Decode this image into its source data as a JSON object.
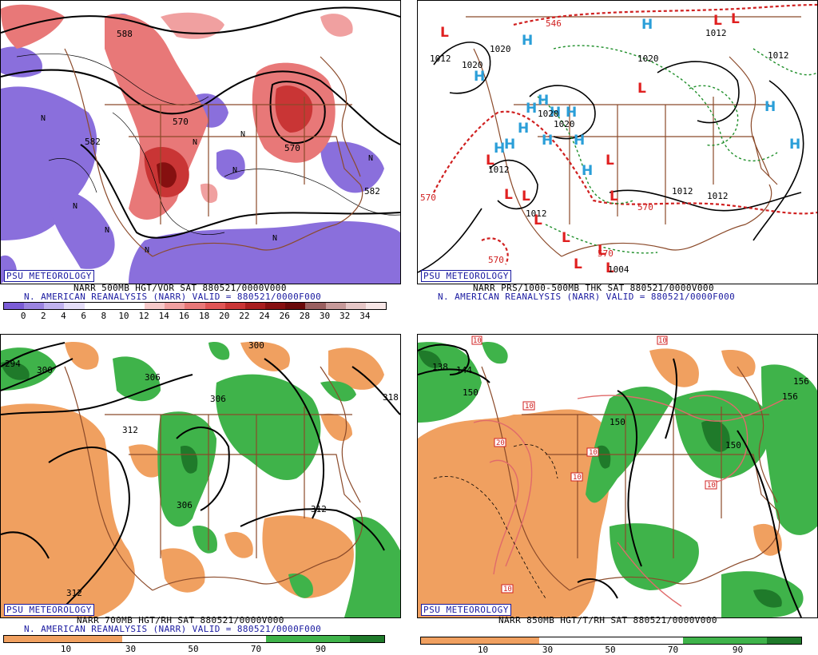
{
  "panels": {
    "tl": {
      "badge": "PSU METEOROLOGY",
      "caption1": "NARR 500MB HGT/VOR SAT 880521/0000V000",
      "caption2": "N. AMERICAN REANALYSIS (NARR) VALID = 880521/0000F000",
      "contour_labels": [
        "588",
        "570",
        "582",
        "570",
        "582"
      ],
      "colorbar_colors": [
        "#7b5cd6",
        "#9b84e0",
        "#c0b2ee",
        "#e4ddf7",
        "#ffffff",
        "#ffffff",
        "#ffffff",
        "#f6c9c9",
        "#f0a0a0",
        "#e87878",
        "#df5555",
        "#c93535",
        "#a81e1e",
        "#861010",
        "#6a0a0a",
        "#9a6060",
        "#c79a9a",
        "#e6c7c7",
        "#f7e6e6"
      ],
      "colorbar_ticks": [
        "0",
        "2",
        "4",
        "6",
        "8",
        "10",
        "12",
        "14",
        "16",
        "18",
        "20",
        "22",
        "24",
        "26",
        "28",
        "30",
        "32",
        "34"
      ]
    },
    "tr": {
      "badge": "PSU METEOROLOGY",
      "caption1": "NARR PRS/1000-500MB THK SAT 880521/0000V000",
      "caption2": "N. AMERICAN REANALYSIS (NARR) VALID = 880521/0000F000",
      "pressure_labels": [
        "1012",
        "1020",
        "1020",
        "1020",
        "1020",
        "1020",
        "1012",
        "1012",
        "1012",
        "1012",
        "1012",
        "1012",
        "1004"
      ],
      "thickness_labels": [
        "546",
        "570",
        "570",
        "570",
        "570"
      ],
      "high_symbol": "H",
      "low_symbol": "L"
    },
    "bl": {
      "badge": "PSU METEOROLOGY",
      "caption1": "NARR 700MB HGT/RH SAT 880521/0000V000",
      "caption2": "N. AMERICAN REANALYSIS (NARR) VALID = 880521/0000F000",
      "contour_labels": [
        "294",
        "300",
        "306",
        "300",
        "306",
        "312",
        "318",
        "306",
        "312",
        "312"
      ],
      "colorbar_ticks": [
        "10",
        "30",
        "50",
        "70",
        "90"
      ]
    },
    "br": {
      "badge": "PSU METEOROLOGY",
      "caption1": "NARR 850MB HGT/T/RH SAT 880521/0000V000",
      "contour_labels": [
        "138",
        "144",
        "150",
        "150",
        "156",
        "150",
        "156"
      ],
      "temp_labels": [
        "10",
        "10",
        "20",
        "10",
        "10",
        "10",
        "10",
        "10"
      ],
      "colorbar_ticks": [
        "10",
        "30",
        "50",
        "70",
        "90"
      ]
    }
  },
  "colors": {
    "vort_pos": "#e87878",
    "vort_neg": "#8a6fdc",
    "rh_moist": "#3fb34a",
    "rh_dry": "#f0a060",
    "map_lines": "#8b4a2a",
    "high": "#2a9ed8",
    "low": "#e02020",
    "thickness": "#d02020",
    "thickness_cold": "#1f8f2a"
  }
}
